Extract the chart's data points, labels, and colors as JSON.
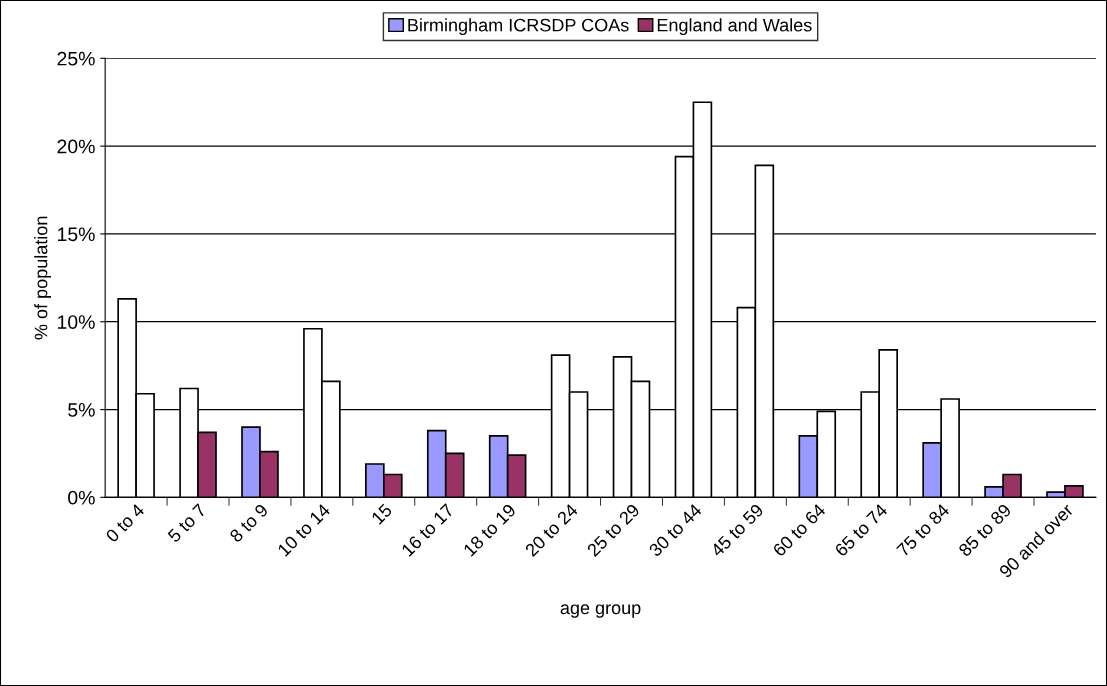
{
  "chart_data": {
    "type": "bar",
    "xlabel": "age group",
    "ylabel": "% of population",
    "categories": [
      "0 to 4",
      "5 to 7",
      "8 to 9",
      "10 to 14",
      "15",
      "16 to 17",
      "18 to 19",
      "20 to 24",
      "25 to 29",
      "30 to 44",
      "45 to 59",
      "60 to 64",
      "65 to 74",
      "75 to 84",
      "85 to 89",
      "90 and over"
    ],
    "series": [
      {
        "name": "Birmingham ICRSDP COAs",
        "color": "#9999ff",
        "values": [
          11.3,
          6.2,
          4.0,
          9.6,
          1.9,
          3.8,
          3.5,
          8.1,
          8.0,
          19.4,
          10.8,
          3.5,
          6.0,
          3.1,
          0.6,
          0.3
        ],
        "colors": [
          "#ffffff",
          "#ffffff",
          "#9999ff",
          "#ffffff",
          "#9999ff",
          "#9999ff",
          "#9999ff",
          "#ffffff",
          "#ffffff",
          "#ffffff",
          "#ffffff",
          "#9999ff",
          "#ffffff",
          "#9999ff",
          "#9999ff",
          "#9999ff"
        ]
      },
      {
        "name": "England and Wales",
        "color": "#993366",
        "values": [
          5.9,
          3.7,
          2.6,
          6.6,
          1.3,
          2.5,
          2.4,
          6.0,
          6.6,
          22.5,
          18.9,
          4.9,
          8.4,
          5.6,
          1.3,
          0.65
        ],
        "colors": [
          "#ffffff",
          "#993366",
          "#993366",
          "#ffffff",
          "#993366",
          "#993366",
          "#993366",
          "#ffffff",
          "#ffffff",
          "#ffffff",
          "#ffffff",
          "#ffffff",
          "#ffffff",
          "#ffffff",
          "#993366",
          "#993366"
        ]
      }
    ],
    "ylim": [
      0,
      25
    ],
    "yticks": [
      {
        "value": 0,
        "label": "0%"
      },
      {
        "value": 5,
        "label": "5%"
      },
      {
        "value": 10,
        "label": "10%"
      },
      {
        "value": 15,
        "label": "15%"
      },
      {
        "value": 20,
        "label": "20%"
      },
      {
        "value": 25,
        "label": "25%"
      }
    ],
    "grid": "y",
    "legend": "top"
  }
}
